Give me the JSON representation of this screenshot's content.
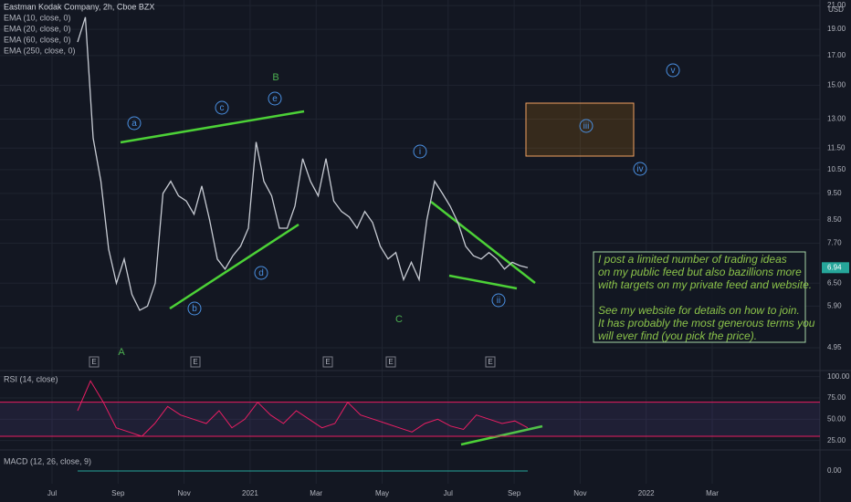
{
  "chart_data": [
    {
      "type": "line",
      "title": "Eastman Kodak Company, 2h, Cboe BZX",
      "indicators": [
        "EMA (10, close, 0)",
        "EMA (20, close, 0)",
        "EMA (60, close, 0)",
        "EMA (250, close, 0)"
      ],
      "currency": "USD",
      "color": "#c7cbd3",
      "log_scale": true,
      "grid": true,
      "values": [
        18,
        20,
        12,
        10,
        7.5,
        6.5,
        7.2,
        6.2,
        5.8,
        5.9,
        6.5,
        9.5,
        10,
        9.4,
        9.2,
        8.7,
        9.8,
        8.5,
        7.2,
        6.9,
        7.3,
        7.6,
        8.2,
        11.8,
        10,
        9.4,
        8.2,
        8.2,
        9,
        11,
        10,
        9.4,
        11,
        9.2,
        8.8,
        8.6,
        8.2,
        8.8,
        8.4,
        7.6,
        7.2,
        7.4,
        6.6,
        7.1,
        6.6,
        8.5,
        10,
        9.5,
        9,
        8.4,
        7.6,
        7.3,
        7.2,
        7.4,
        7.2,
        6.9,
        7.1,
        7,
        6.94
      ],
      "ylim": [
        4.6,
        21.5
      ],
      "yticks": [
        {
          "value": 21,
          "label": "21.00"
        },
        {
          "value": 19,
          "label": "19.00"
        },
        {
          "value": 17,
          "label": "17.00"
        },
        {
          "value": 15,
          "label": "15.00"
        },
        {
          "value": 13,
          "label": "13.00"
        },
        {
          "value": 11.5,
          "label": "11.50"
        },
        {
          "value": 10.5,
          "label": "10.50"
        },
        {
          "value": 9.5,
          "label": "9.50"
        },
        {
          "value": 8.5,
          "label": "8.50"
        },
        {
          "value": 7.7,
          "label": "7.70"
        },
        {
          "value": 6.5,
          "label": "6.50"
        },
        {
          "value": 5.9,
          "label": "5.90"
        },
        {
          "value": 4.95,
          "label": "4.95"
        }
      ],
      "x_axis_labels": [
        "Jul",
        "Sep",
        "Nov",
        "2021",
        "Mar",
        "May",
        "Jul",
        "Sep",
        "Nov",
        "2022",
        "Mar"
      ],
      "wave_labels": [
        "a",
        "c",
        "e",
        "b",
        "d",
        "i",
        "ii",
        "iii",
        "iv",
        "v"
      ],
      "degree_labels": [
        "B",
        "A",
        "C"
      ],
      "event_markers": [
        "E",
        "E",
        "E",
        "E",
        "E"
      ],
      "note": [
        "I post a limited number of trading ideas",
        "on my public feed but also bazillions more",
        "with targets on my private feed and website.",
        "See my website for details on how to join.",
        "It has probably the most generous terms you",
        "will ever find (you pick the price)."
      ]
    },
    {
      "type": "line",
      "title": "RSI (14, close)",
      "color": "#e91e63",
      "values": [
        60,
        95,
        70,
        40,
        35,
        30,
        45,
        65,
        55,
        50,
        45,
        60,
        40,
        50,
        70,
        55,
        45,
        60,
        50,
        40,
        45,
        70,
        55,
        50,
        45,
        40,
        35,
        45,
        50,
        42,
        38,
        55,
        50,
        45,
        48,
        40
      ],
      "bands": [
        30,
        70
      ],
      "ylim": [
        15,
        105
      ],
      "yticks": [
        {
          "value": 100,
          "label": "100.00"
        },
        {
          "value": 75,
          "label": "75.00"
        },
        {
          "value": 50,
          "label": "50.00"
        },
        {
          "value": 25,
          "label": "25.00"
        }
      ]
    },
    {
      "type": "line",
      "title": "MACD (12, 26, close, 9)",
      "ylim": [
        -1,
        1.5
      ],
      "yticks": [
        {
          "value": 0,
          "label": "0.00"
        }
      ]
    }
  ]
}
